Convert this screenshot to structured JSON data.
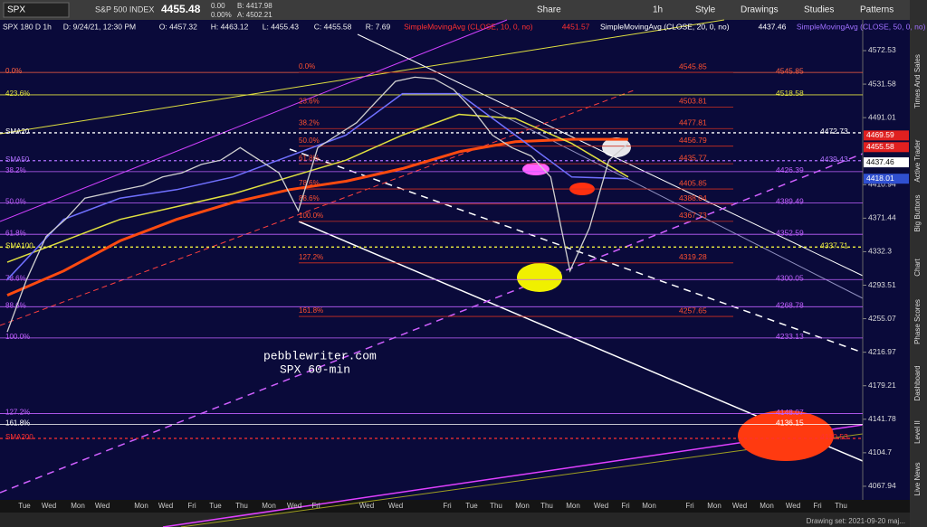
{
  "toolbar": {
    "symbol": "SPX",
    "name": "S&P 500 INDEX",
    "last": "4455.48",
    "change": "0.00",
    "change_pct": "0.00%",
    "bid": "B: 4417.98",
    "ask": "A: 4502.21",
    "buttons": [
      "Share",
      "1h",
      "Style",
      "Drawings",
      "Studies",
      "Patterns"
    ]
  },
  "legend": {
    "items": [
      "SPX 180 D 1h",
      "D: 9/24/21, 12:30 PM",
      "O: 4457.32",
      "H: 4463.12",
      "L: 4455.43",
      "C: 4455.58",
      "R: 7.69"
    ],
    "studies": [
      {
        "text": "SimpleMovingAvg (CLOSE, 10, 0, no)",
        "value": "4451.57",
        "color": "#ff3030"
      },
      {
        "text": "SimpleMovingAvg (CLOSE, 20, 0, no)",
        "value": "4437.46",
        "color": "#ffffff"
      },
      {
        "text": "SimpleMovingAvg (CLOSE, 50, 0, no)",
        "color": "#a070ff"
      }
    ]
  },
  "sidebar": {
    "tabs": [
      "Times And Sales",
      "Active Trader",
      "Big Buttons",
      "Chart",
      "Phase Scores",
      "Dashboard",
      "Level II",
      "Live News"
    ]
  },
  "status": "Drawing set: 2021-09-20 maj...",
  "chart_data": {
    "type": "line",
    "log": true,
    "ylim": [
      4053.1,
      4610.4
    ],
    "yticks": [
      4572.53,
      4531.58,
      4491.01,
      4410.94,
      4371.44,
      4332.3,
      4293.51,
      4255.07,
      4216.97,
      4179.21,
      4141.78,
      4104.7,
      4067.94
    ],
    "price": {
      "color": "#d0d0d0",
      "values": [
        4240,
        4300,
        4350,
        4370,
        4395,
        4400,
        4405,
        4410,
        4420,
        4425,
        4435,
        4440,
        4455,
        4440,
        4425,
        4380,
        4455,
        4470,
        4485,
        4510,
        4535,
        4540,
        4538,
        4525,
        4500,
        4470,
        4455,
        4445,
        4420,
        4310,
        4360,
        4440,
        4460
      ]
    },
    "curves": [
      {
        "color": "#ff4a10",
        "values": [
          4282,
          4310,
          4345,
          4370,
          4390,
          4405,
          4415,
          4430,
          4450,
          4462,
          4465,
          4465
        ]
      },
      {
        "color": "#e0e040",
        "values": [
          4320,
          4345,
          4370,
          4385,
          4400,
          4420,
          4440,
          4470,
          4495,
          4490,
          4460,
          4420
        ]
      },
      {
        "color": "#7070ff",
        "values": [
          4300,
          4370,
          4395,
          4405,
          4420,
          4445,
          4470,
          4520,
          4520,
          4470,
          4420,
          4418
        ]
      }
    ],
    "left_levels": [
      {
        "label": "0.0%",
        "value": 4545.85,
        "color": "#ff6040"
      },
      {
        "label": "423.6%",
        "value": 4518.58,
        "color": "#e0e040"
      },
      {
        "label": "SMA20",
        "value": 4472.73,
        "color": "#ffffff"
      },
      {
        "label": "SMA50",
        "value": 4439.43,
        "color": "#b070ff"
      },
      {
        "label": "38.2%",
        "value": 4426.39,
        "color": "#c060ff"
      },
      {
        "label": "50.0%",
        "value": 4389.49,
        "color": "#c060ff"
      },
      {
        "label": "61.8%",
        "value": 4352.59,
        "color": "#c060ff"
      },
      {
        "label": "SMA100",
        "value": 4337.71,
        "color": "#f0f040"
      },
      {
        "label": "78.6%",
        "value": 4300.05,
        "color": "#c060ff"
      },
      {
        "label": "88.6%",
        "value": 4268.78,
        "color": "#c060ff"
      },
      {
        "label": "100.0%",
        "value": 4233.13,
        "color": "#c060ff"
      },
      {
        "label": "127.2%",
        "value": 4148.07,
        "color": "#c060ff"
      },
      {
        "label": "161.8%",
        "value": 4136.15,
        "color": "#ffffff"
      },
      {
        "label": "SMA200",
        "value": 4120.53,
        "color": "#ff3030"
      }
    ],
    "mid_levels": [
      {
        "label": "0.0%",
        "value": 4545.85
      },
      {
        "label": "23.6%",
        "value": 4503.81
      },
      {
        "label": "38.2%",
        "value": 4477.81
      },
      {
        "label": "50.0%",
        "value": 4456.79
      },
      {
        "label": "61.8%",
        "value": 4435.77
      },
      {
        "label": "78.6%",
        "value": 4405.85
      },
      {
        "label": "88.6%",
        "value": 4388.04
      },
      {
        "label": "100.0%",
        "value": 4367.73
      },
      {
        "label": "127.2%",
        "value": 4319.28
      },
      {
        "label": "161.8%",
        "value": 4257.65
      }
    ],
    "badges": [
      {
        "value": 4469.59,
        "color": "#e02020"
      },
      {
        "value": 4455.58,
        "color": "#e02020"
      },
      {
        "value": 4437.46,
        "color": "#ffffff"
      },
      {
        "value": 4418.01,
        "color": "#3050d0"
      }
    ],
    "annotations": [
      "pebblewriter.com",
      "SPX 60-min"
    ],
    "x_labels": [
      "Tue",
      "Wed",
      "Mon",
      "Wed",
      "Mon",
      "Wed",
      "Fri",
      "Tue",
      "Thu",
      "Mon",
      "Wed",
      "Fri",
      "Wed",
      "Wed",
      "Fri",
      "Tue",
      "Thu",
      "Mon",
      "Thu",
      "Mon",
      "Wed",
      "Fri",
      "Mon",
      "Fri",
      "Mon",
      "Wed",
      "Mon",
      "Wed",
      "Fri",
      "Thu"
    ]
  }
}
